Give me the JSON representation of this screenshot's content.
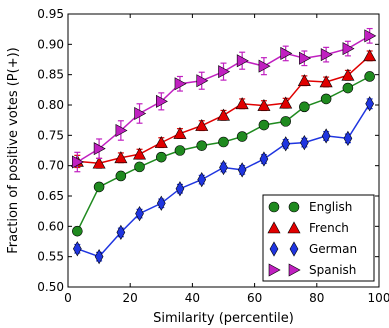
{
  "chart_data": {
    "type": "line",
    "title": "",
    "xlabel": "Similarity (percentile)",
    "ylabel": "Fraction of positive votes (P(+))",
    "xlim": [
      0,
      100
    ],
    "ylim": [
      0.5,
      0.95
    ],
    "x_ticks": [
      "0",
      "20",
      "40",
      "60",
      "80",
      "100"
    ],
    "y_ticks": [
      "0.50",
      "0.55",
      "0.60",
      "0.65",
      "0.70",
      "0.75",
      "0.80",
      "0.85",
      "0.90",
      "0.95"
    ],
    "grid": false,
    "legend_position": "bottom-right",
    "x": [
      3,
      10,
      17,
      23,
      30,
      36,
      43,
      50,
      56,
      63,
      70,
      76,
      83,
      90,
      97
    ],
    "series": [
      {
        "name": "English",
        "color": "#1f8a1f",
        "marker": "circle",
        "values": [
          0.592,
          0.665,
          0.683,
          0.698,
          0.714,
          0.725,
          0.733,
          0.739,
          0.748,
          0.767,
          0.773,
          0.797,
          0.81,
          0.828,
          0.847
        ],
        "errors": [
          0.004,
          0.004,
          0.004,
          0.004,
          0.004,
          0.004,
          0.004,
          0.004,
          0.004,
          0.004,
          0.004,
          0.004,
          0.004,
          0.004,
          0.004
        ]
      },
      {
        "name": "French",
        "color": "#e00000",
        "marker": "triangle-up",
        "values": [
          0.707,
          0.704,
          0.713,
          0.719,
          0.738,
          0.753,
          0.766,
          0.783,
          0.802,
          0.799,
          0.803,
          0.84,
          0.838,
          0.849,
          0.881
        ],
        "errors": [
          0.01,
          0.008,
          0.008,
          0.008,
          0.008,
          0.008,
          0.008,
          0.008,
          0.008,
          0.008,
          0.008,
          0.008,
          0.008,
          0.008,
          0.008
        ]
      },
      {
        "name": "German",
        "color": "#1f35e0",
        "marker": "thin-diamond",
        "values": [
          0.563,
          0.55,
          0.59,
          0.621,
          0.638,
          0.662,
          0.677,
          0.697,
          0.693,
          0.711,
          0.736,
          0.738,
          0.749,
          0.745,
          0.802
        ],
        "errors": [
          0.007,
          0.007,
          0.007,
          0.007,
          0.007,
          0.007,
          0.007,
          0.007,
          0.007,
          0.007,
          0.007,
          0.007,
          0.007,
          0.007,
          0.008
        ]
      },
      {
        "name": "Spanish",
        "color": "#c020c0",
        "marker": "triangle-right",
        "values": [
          0.706,
          0.728,
          0.758,
          0.786,
          0.806,
          0.835,
          0.84,
          0.855,
          0.873,
          0.864,
          0.885,
          0.877,
          0.883,
          0.893,
          0.914
        ],
        "errors": [
          0.016,
          0.016,
          0.016,
          0.016,
          0.014,
          0.012,
          0.014,
          0.014,
          0.014,
          0.014,
          0.012,
          0.012,
          0.012,
          0.012,
          0.012
        ]
      }
    ]
  }
}
